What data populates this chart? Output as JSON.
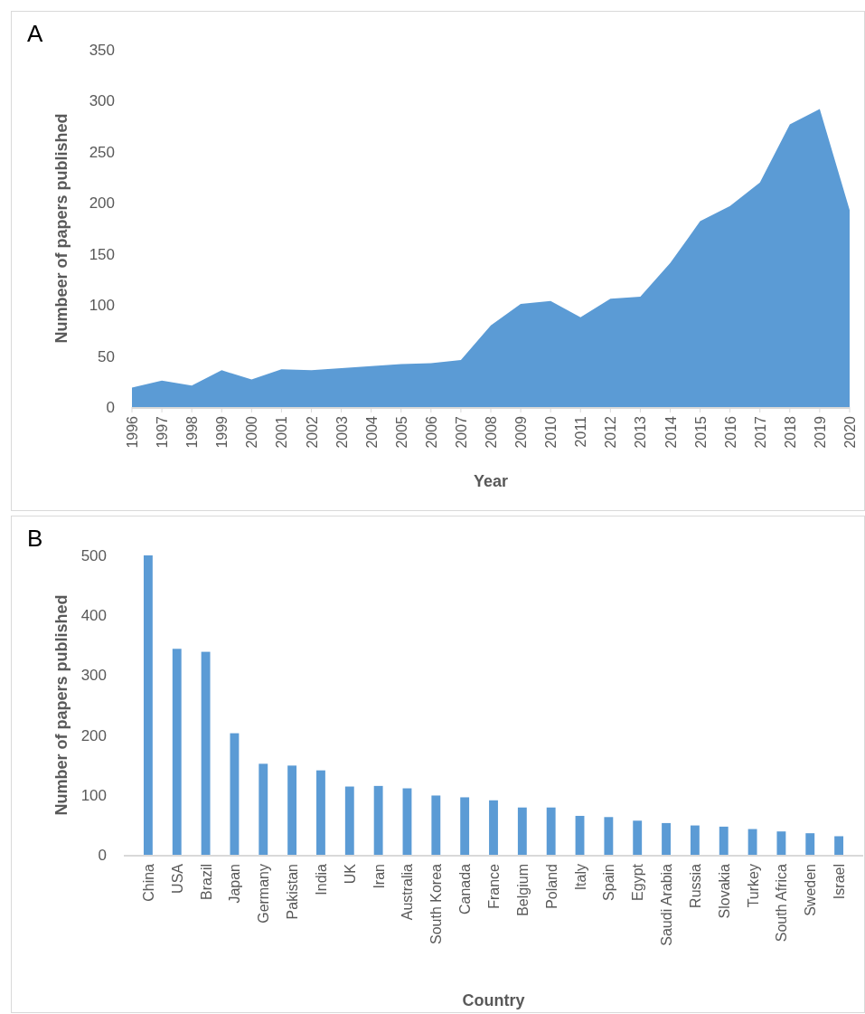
{
  "chart_data": [
    {
      "type": "area",
      "title": "A",
      "xlabel": "Year",
      "ylabel": "Numbeer of papers published",
      "categories": [
        "1996",
        "1997",
        "1998",
        "1999",
        "2000",
        "2001",
        "2002",
        "2003",
        "2004",
        "2005",
        "2006",
        "2007",
        "2008",
        "2009",
        "2010",
        "2011",
        "2012",
        "2013",
        "2014",
        "2015",
        "2016",
        "2017",
        "2018",
        "2019",
        "2020"
      ],
      "series": [
        {
          "color": "#5b9bd5",
          "values": [
            19,
            26,
            21,
            36,
            27,
            37,
            36,
            38,
            40,
            42,
            43,
            46,
            80,
            101,
            104,
            88,
            106,
            108,
            141,
            182,
            197,
            220,
            277,
            292,
            193
          ]
        }
      ],
      "ylim": [
        0,
        350
      ],
      "yticks": [
        0,
        50,
        100,
        150,
        200,
        250,
        300,
        350
      ],
      "grid": false
    },
    {
      "type": "bar",
      "title": "B",
      "xlabel": "Country",
      "ylabel": "Number of papers published",
      "categories": [
        "China",
        "USA",
        "Brazil",
        "Japan",
        "Germany",
        "Pakistan",
        "India",
        "UK",
        "Iran",
        "Australia",
        "South Korea",
        "Canada",
        "France",
        "Belgium",
        "Poland",
        "Italy",
        "Spain",
        "Egypt",
        "Saudi Arabia",
        "Russia",
        "Slovakia",
        "Turkey",
        "South Africa",
        "Sweden",
        "Israel"
      ],
      "series": [
        {
          "color": "#5b9bd5",
          "values": [
            500,
            344,
            339,
            203,
            152,
            149,
            141,
            114,
            115,
            111,
            99,
            96,
            91,
            79,
            79,
            65,
            63,
            57,
            53,
            49,
            47,
            43,
            39,
            36,
            31
          ]
        }
      ],
      "ylim": [
        0,
        500
      ],
      "yticks": [
        0,
        100,
        200,
        300,
        400,
        500
      ],
      "grid": false
    }
  ]
}
